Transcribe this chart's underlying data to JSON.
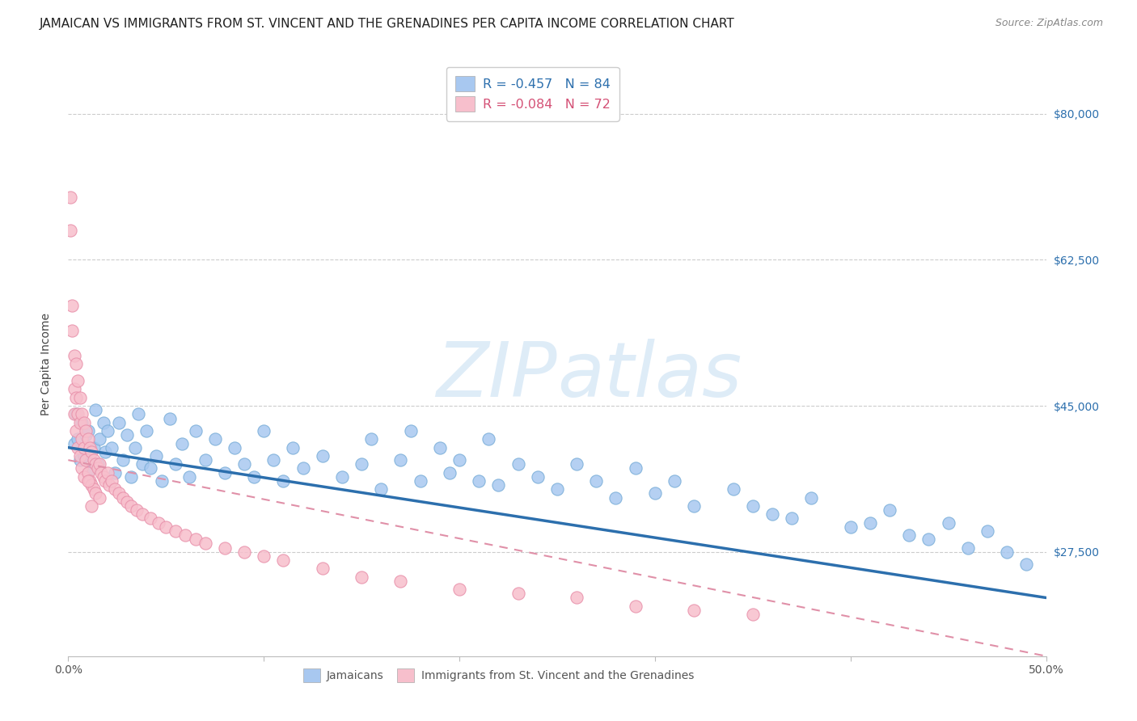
{
  "title": "JAMAICAN VS IMMIGRANTS FROM ST. VINCENT AND THE GRENADINES PER CAPITA INCOME CORRELATION CHART",
  "source": "Source: ZipAtlas.com",
  "ylabel": "Per Capita Income",
  "xlim": [
    0.0,
    0.5
  ],
  "ylim": [
    15000,
    85000
  ],
  "xtick_positions": [
    0.0,
    0.1,
    0.2,
    0.3,
    0.4,
    0.5
  ],
  "xticklabels": [
    "0.0%",
    "",
    "",
    "",
    "",
    "50.0%"
  ],
  "ytick_positions": [
    27500,
    45000,
    62500,
    80000
  ],
  "yticklabels": [
    "$27,500",
    "$45,000",
    "$62,500",
    "$80,000"
  ],
  "legend1_label": "R = -0.457   N = 84",
  "legend2_label": "R = -0.084   N = 72",
  "legend_bottom_label1": "Jamaicans",
  "legend_bottom_label2": "Immigrants from St. Vincent and the Grenadines",
  "blue_color": "#a8c8f0",
  "blue_edge_color": "#7aaed8",
  "pink_color": "#f7bfcc",
  "pink_edge_color": "#e890aa",
  "blue_line_color": "#2c6fad",
  "pink_line_color": "#e090a8",
  "title_fontsize": 11,
  "axis_label_fontsize": 10,
  "tick_fontsize": 10,
  "blue_scatter_x": [
    0.003,
    0.004,
    0.005,
    0.006,
    0.007,
    0.008,
    0.009,
    0.01,
    0.012,
    0.013,
    0.014,
    0.015,
    0.016,
    0.018,
    0.019,
    0.02,
    0.022,
    0.024,
    0.026,
    0.028,
    0.03,
    0.032,
    0.034,
    0.036,
    0.038,
    0.04,
    0.042,
    0.045,
    0.048,
    0.052,
    0.055,
    0.058,
    0.062,
    0.065,
    0.07,
    0.075,
    0.08,
    0.085,
    0.09,
    0.095,
    0.1,
    0.105,
    0.11,
    0.115,
    0.12,
    0.13,
    0.14,
    0.15,
    0.155,
    0.16,
    0.17,
    0.175,
    0.18,
    0.19,
    0.195,
    0.2,
    0.21,
    0.215,
    0.22,
    0.23,
    0.24,
    0.25,
    0.26,
    0.27,
    0.28,
    0.29,
    0.3,
    0.31,
    0.32,
    0.34,
    0.36,
    0.38,
    0.4,
    0.42,
    0.44,
    0.45,
    0.46,
    0.47,
    0.48,
    0.49,
    0.35,
    0.37,
    0.41,
    0.43
  ],
  "blue_scatter_y": [
    40500,
    44000,
    41000,
    38500,
    43000,
    39000,
    41500,
    42000,
    37500,
    40000,
    44500,
    38000,
    41000,
    43000,
    39500,
    42000,
    40000,
    37000,
    43000,
    38500,
    41500,
    36500,
    40000,
    44000,
    38000,
    42000,
    37500,
    39000,
    36000,
    43500,
    38000,
    40500,
    36500,
    42000,
    38500,
    41000,
    37000,
    40000,
    38000,
    36500,
    42000,
    38500,
    36000,
    40000,
    37500,
    39000,
    36500,
    38000,
    41000,
    35000,
    38500,
    42000,
    36000,
    40000,
    37000,
    38500,
    36000,
    41000,
    35500,
    38000,
    36500,
    35000,
    38000,
    36000,
    34000,
    37500,
    34500,
    36000,
    33000,
    35000,
    32000,
    34000,
    30500,
    32500,
    29000,
    31000,
    28000,
    30000,
    27500,
    26000,
    33000,
    31500,
    31000,
    29500
  ],
  "pink_scatter_x": [
    0.001,
    0.001,
    0.002,
    0.002,
    0.003,
    0.003,
    0.003,
    0.004,
    0.004,
    0.004,
    0.005,
    0.005,
    0.005,
    0.006,
    0.006,
    0.006,
    0.007,
    0.007,
    0.007,
    0.008,
    0.008,
    0.008,
    0.009,
    0.009,
    0.01,
    0.01,
    0.011,
    0.011,
    0.012,
    0.012,
    0.013,
    0.013,
    0.014,
    0.014,
    0.015,
    0.016,
    0.016,
    0.017,
    0.018,
    0.019,
    0.02,
    0.021,
    0.022,
    0.024,
    0.026,
    0.028,
    0.03,
    0.032,
    0.035,
    0.038,
    0.042,
    0.046,
    0.05,
    0.055,
    0.06,
    0.065,
    0.07,
    0.08,
    0.09,
    0.1,
    0.11,
    0.13,
    0.15,
    0.17,
    0.2,
    0.23,
    0.26,
    0.29,
    0.32,
    0.35,
    0.01,
    0.012
  ],
  "pink_scatter_y": [
    70000,
    66000,
    57000,
    54000,
    51000,
    47000,
    44000,
    50000,
    46000,
    42000,
    48000,
    44000,
    40000,
    46000,
    43000,
    39000,
    44000,
    41000,
    37500,
    43000,
    40000,
    36500,
    42000,
    38500,
    41000,
    37000,
    40000,
    36000,
    39500,
    35500,
    38500,
    35000,
    38000,
    34500,
    37500,
    38000,
    34000,
    37000,
    36500,
    36000,
    37000,
    35500,
    36000,
    35000,
    34500,
    34000,
    33500,
    33000,
    32500,
    32000,
    31500,
    31000,
    30500,
    30000,
    29500,
    29000,
    28500,
    28000,
    27500,
    27000,
    26500,
    25500,
    24500,
    24000,
    23000,
    22500,
    22000,
    21000,
    20500,
    20000,
    36000,
    33000
  ],
  "blue_line_x": [
    0.0,
    0.5
  ],
  "blue_line_y": [
    40000,
    22000
  ],
  "pink_line_x": [
    0.0,
    0.5
  ],
  "pink_line_y": [
    38500,
    15000
  ]
}
